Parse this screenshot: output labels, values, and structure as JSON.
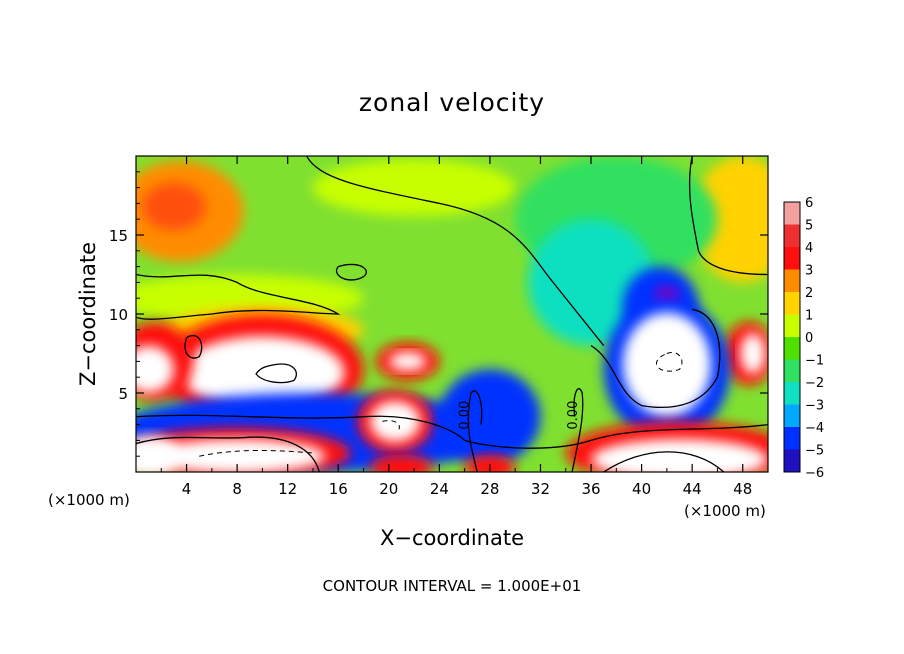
{
  "chart_data": {
    "type": "heatmap",
    "title": "zonal velocity",
    "xlabel": "X−coordinate",
    "ylabel": "Z−coordinate",
    "x_unit_left": "(×1000 m)",
    "x_unit_right": "(×1000 m)",
    "footer": "CONTOUR INTERVAL = 1.000E+01",
    "xlim": [
      0,
      50
    ],
    "ylim": [
      0,
      20
    ],
    "x_ticks": [
      4,
      8,
      12,
      16,
      20,
      24,
      28,
      32,
      36,
      40,
      44,
      48
    ],
    "y_ticks": [
      5,
      10,
      15
    ],
    "colorbar": {
      "levels": [
        6,
        5,
        4,
        3,
        2,
        1,
        0,
        -1,
        -2,
        -3,
        -4,
        -5,
        -6
      ],
      "labels": [
        "6",
        "5",
        "4",
        "3",
        "2",
        "1",
        "0",
        "−1",
        "−2",
        "−3",
        "−4",
        "−5",
        "−6"
      ],
      "colors": [
        "#f4a0a0",
        "#ee3030",
        "#ff1010",
        "#ff8c00",
        "#ffd200",
        "#c8ff00",
        "#50e000",
        "#30e060",
        "#10e0c0",
        "#00a8ff",
        "#0030ff",
        "#2010c0",
        "#8000c0"
      ]
    },
    "contour_labels": [
      "0.00",
      "0.00"
    ],
    "background_color": "#80e030",
    "blobs": [
      {
        "x": 3.5,
        "z": 16.5,
        "rx": 5,
        "rz": 3.2,
        "color": "#ff8c00"
      },
      {
        "x": 3,
        "z": 16.8,
        "rx": 2.5,
        "rz": 1.5,
        "color": "#ff5010"
      },
      {
        "x": 22,
        "z": 18,
        "rx": 8,
        "rz": 1.8,
        "color": "#c8ff00"
      },
      {
        "x": 48,
        "z": 16,
        "rx": 4,
        "rz": 4,
        "color": "#ffd200"
      },
      {
        "x": 38,
        "z": 16,
        "rx": 8,
        "rz": 4,
        "color": "#30e060"
      },
      {
        "x": 36,
        "z": 12,
        "rx": 5,
        "rz": 4,
        "color": "#10e0c0"
      },
      {
        "x": 41.5,
        "z": 10.5,
        "rx": 3,
        "rz": 2.5,
        "color": "#0030ff"
      },
      {
        "x": 42,
        "z": 11,
        "rx": 1,
        "rz": 0.8,
        "color": "#8000c0"
      },
      {
        "x": 8,
        "z": 11,
        "rx": 10,
        "rz": 1.5,
        "color": "#c8ff00"
      },
      {
        "x": 10,
        "z": 9,
        "rx": 8,
        "rz": 1.5,
        "color": "#ffd200"
      },
      {
        "x": 10,
        "z": 6.5,
        "rx": 8,
        "rz": 3.5,
        "color": "#ff1010"
      },
      {
        "x": 10,
        "z": 6.3,
        "rx": 6.5,
        "rz": 2.3,
        "color": "#ffffff"
      },
      {
        "x": 21.5,
        "z": 7,
        "rx": 2.5,
        "rz": 1.2,
        "color": "#ff1010"
      },
      {
        "x": 21.5,
        "z": 7,
        "rx": 1.5,
        "rz": 0.6,
        "color": "#ffffff"
      },
      {
        "x": 1.5,
        "z": 7,
        "rx": 3,
        "rz": 2.5,
        "color": "#ff1010"
      },
      {
        "x": 1,
        "z": 6.5,
        "rx": 2,
        "rz": 1.5,
        "color": "#ffffff"
      },
      {
        "x": 48.5,
        "z": 7.5,
        "rx": 2,
        "rz": 2,
        "color": "#ff1010"
      },
      {
        "x": 48.8,
        "z": 7.5,
        "rx": 1,
        "rz": 1.3,
        "color": "#ffffff"
      },
      {
        "x": 42,
        "z": 6.5,
        "rx": 5,
        "rz": 4.5,
        "color": "#0030ff"
      },
      {
        "x": 42,
        "z": 6.8,
        "rx": 3.5,
        "rz": 3.3,
        "color": "#ffffff"
      },
      {
        "x": 14,
        "z": 2.5,
        "rx": 16,
        "rz": 2.5,
        "color": "#0030ff"
      },
      {
        "x": 8,
        "z": 1.2,
        "rx": 9,
        "rz": 1.6,
        "color": "#ff1010"
      },
      {
        "x": 8,
        "z": 1,
        "rx": 7,
        "rz": 1.1,
        "color": "#ffffff"
      },
      {
        "x": 20.5,
        "z": 3.2,
        "rx": 3,
        "rz": 2,
        "color": "#ff1010"
      },
      {
        "x": 20.5,
        "z": 3.2,
        "rx": 2,
        "rz": 1.3,
        "color": "#ffffff"
      },
      {
        "x": 28,
        "z": 3.5,
        "rx": 4,
        "rz": 3,
        "color": "#0030ff"
      },
      {
        "x": 43,
        "z": 1.2,
        "rx": 9,
        "rz": 2,
        "color": "#ff1010"
      },
      {
        "x": 43,
        "z": 0.8,
        "rx": 7,
        "rz": 1.3,
        "color": "#ffffff"
      },
      {
        "x": 21,
        "z": 0.3,
        "rx": 2.5,
        "rz": 0.8,
        "color": "#ff1010"
      },
      {
        "x": 28,
        "z": 0.3,
        "rx": 2,
        "rz": 0.8,
        "color": "#ff1010"
      },
      {
        "x": 1,
        "z": 1,
        "rx": 2.5,
        "rz": 1.3,
        "color": "#ffffff"
      }
    ],
    "contours": [
      "M 13.5 20 C 14.5 18.5, 18 18, 24 17 C 30 16, 31 14, 33 12 C 35 10, 36 9, 37 8",
      "M 44 20 C 43.5 18, 44 16, 44.5 14 C 45 13, 47 12.5, 50 12.5",
      "M 0 12.5 C 3 12, 5 13, 8 12 C 10 11, 14 11, 16 10 C 14 10, 10 10.5, 6 10 C 3 9.8, 1 9.5, 0 9.8",
      "M 0 3.5 C 6 3.8, 12 3.2, 18 3.5 C 22 3.7, 25 2.8, 26 2 C 28 1.5, 33 1.2, 36 2 C 40 3, 45 2.5, 50 3",
      "M 36 8 C 38 7, 38 5, 40 4.2 C 43 3.8, 45 4.5, 46 6 C 46.5 8, 46 10, 44 10.3",
      "M 11 6.8 C 12.5 7, 13 6.3, 12.5 5.8 C 11.5 5.5, 10 5.7, 9.5 6.2 C 9.8 6.6, 10.3 6.7, 11 6.8",
      "M 4 8.5 C 5 9, 5.5 8, 5 7.3 C 4.3 7, 3.6 7.5, 4 8.5",
      "M 16 13 C 18 13.5, 19 12.5, 17.5 12.2 C 16.5 12, 15.5 12.5, 16 13",
      "M 27 0 C 26.5 1.5, 26 3, 26.5 5 C 27 5.5, 27.5 4.5, 27.3 3",
      "M 34.5 0 C 35 2, 35.5 3.5, 35.3 5 C 35 5.7, 34.5 5, 34.7 3.5",
      "M 0 1.8 C 3 2.5, 6 2, 9 2.2 C 12 2.3, 14 1.5, 14.5 0",
      "M 37 0 C 40 1.6, 44 1.8, 46.5 0"
    ],
    "dashed_contours": [
      "M 42 7.5 C 43 7.8, 43.5 7, 43 6.5 C 42 6.2, 41 6.5, 41.2 7 C 41.4 7.3, 41.7 7.4, 42 7.5",
      "M 5 1 C 8 1.5, 11 1.4, 14 1.2",
      "M 19.5 3.2 C 20.5 3.4, 21 3, 20.8 2.7"
    ]
  }
}
